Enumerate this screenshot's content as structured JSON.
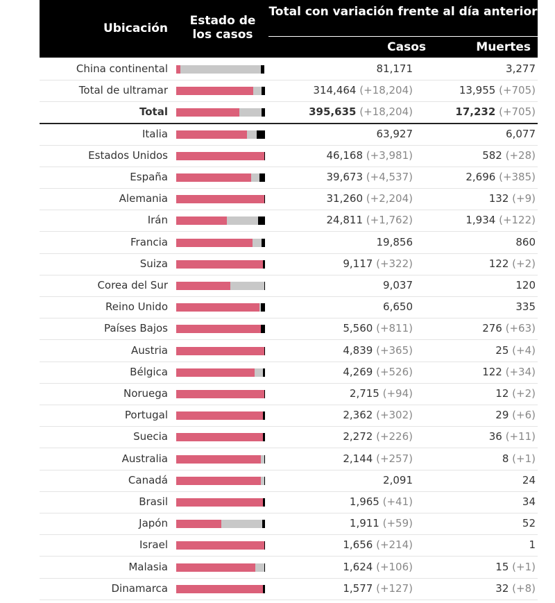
{
  "header": {
    "location": "Ubicación",
    "status": "Estado de los casos",
    "total": "Total con variación frente al día anterior",
    "cases": "Casos",
    "deaths": "Muertes"
  },
  "colors": {
    "active": "#db6079",
    "recovered": "#c8c8c8",
    "deaths": "#000000"
  },
  "rows": [
    {
      "location": "China continental",
      "cases": "81,171",
      "cases_change": "",
      "deaths": "3,277",
      "deaths_change": "",
      "active_frac": 0.05,
      "recovered_frac": 0.91,
      "deaths_frac": 0.04
    },
    {
      "location": "Total de ultramar",
      "cases": "314,464",
      "cases_change": "(+18,204)",
      "deaths": "13,955",
      "deaths_change": "(+705)",
      "active_frac": 0.87,
      "recovered_frac": 0.09,
      "deaths_frac": 0.04
    },
    {
      "location": "Total",
      "cases": "395,635",
      "cases_change": "(+18,204)",
      "deaths": "17,232",
      "deaths_change": "(+705)",
      "active_frac": 0.71,
      "recovered_frac": 0.25,
      "deaths_frac": 0.04,
      "total": true
    },
    {
      "location": "Italia",
      "cases": "63,927",
      "cases_change": "",
      "deaths": "6,077",
      "deaths_change": "",
      "active_frac": 0.8,
      "recovered_frac": 0.11,
      "deaths_frac": 0.09
    },
    {
      "location": "Estados Unidos",
      "cases": "46,168",
      "cases_change": "(+3,981)",
      "deaths": "582",
      "deaths_change": "(+28)",
      "active_frac": 0.99,
      "recovered_frac": 0.0,
      "deaths_frac": 0.01
    },
    {
      "location": "España",
      "cases": "39,673",
      "cases_change": "(+4,537)",
      "deaths": "2,696",
      "deaths_change": "(+385)",
      "active_frac": 0.84,
      "recovered_frac": 0.09,
      "deaths_frac": 0.07
    },
    {
      "location": "Alemania",
      "cases": "31,260",
      "cases_change": "(+2,204)",
      "deaths": "132",
      "deaths_change": "(+9)",
      "active_frac": 0.99,
      "recovered_frac": 0.0,
      "deaths_frac": 0.01
    },
    {
      "location": "Irán",
      "cases": "24,811",
      "cases_change": "(+1,762)",
      "deaths": "1,934",
      "deaths_change": "(+122)",
      "active_frac": 0.57,
      "recovered_frac": 0.35,
      "deaths_frac": 0.08
    },
    {
      "location": "Francia",
      "cases": "19,856",
      "cases_change": "",
      "deaths": "860",
      "deaths_change": "",
      "active_frac": 0.86,
      "recovered_frac": 0.1,
      "deaths_frac": 0.04
    },
    {
      "location": "Suiza",
      "cases": "9,117",
      "cases_change": "(+322)",
      "deaths": "122",
      "deaths_change": "(+2)",
      "active_frac": 0.98,
      "recovered_frac": 0.0,
      "deaths_frac": 0.02
    },
    {
      "location": "Corea del Sur",
      "cases": "9,037",
      "cases_change": "",
      "deaths": "120",
      "deaths_change": "",
      "active_frac": 0.61,
      "recovered_frac": 0.38,
      "deaths_frac": 0.01
    },
    {
      "location": "Reino Unido",
      "cases": "6,650",
      "cases_change": "",
      "deaths": "335",
      "deaths_change": "",
      "active_frac": 0.94,
      "recovered_frac": 0.01,
      "deaths_frac": 0.05
    },
    {
      "location": "Países Bajos",
      "cases": "5,560",
      "cases_change": "(+811)",
      "deaths": "276",
      "deaths_change": "(+63)",
      "active_frac": 0.95,
      "recovered_frac": 0.0,
      "deaths_frac": 0.05
    },
    {
      "location": "Austria",
      "cases": "4,839",
      "cases_change": "(+365)",
      "deaths": "25",
      "deaths_change": "(+4)",
      "active_frac": 0.99,
      "recovered_frac": 0.0,
      "deaths_frac": 0.01
    },
    {
      "location": "Bélgica",
      "cases": "4,269",
      "cases_change": "(+526)",
      "deaths": "122",
      "deaths_change": "(+34)",
      "active_frac": 0.88,
      "recovered_frac": 0.09,
      "deaths_frac": 0.03
    },
    {
      "location": "Noruega",
      "cases": "2,715",
      "cases_change": "(+94)",
      "deaths": "12",
      "deaths_change": "(+2)",
      "active_frac": 0.99,
      "recovered_frac": 0.0,
      "deaths_frac": 0.01
    },
    {
      "location": "Portugal",
      "cases": "2,362",
      "cases_change": "(+302)",
      "deaths": "29",
      "deaths_change": "(+6)",
      "active_frac": 0.98,
      "recovered_frac": 0.0,
      "deaths_frac": 0.02
    },
    {
      "location": "Suecia",
      "cases": "2,272",
      "cases_change": "(+226)",
      "deaths": "36",
      "deaths_change": "(+11)",
      "active_frac": 0.98,
      "recovered_frac": 0.0,
      "deaths_frac": 0.02
    },
    {
      "location": "Australia",
      "cases": "2,144",
      "cases_change": "(+257)",
      "deaths": "8",
      "deaths_change": "(+1)",
      "active_frac": 0.95,
      "recovered_frac": 0.04,
      "deaths_frac": 0.01
    },
    {
      "location": "Canadá",
      "cases": "2,091",
      "cases_change": "",
      "deaths": "24",
      "deaths_change": "",
      "active_frac": 0.95,
      "recovered_frac": 0.04,
      "deaths_frac": 0.01
    },
    {
      "location": "Brasil",
      "cases": "1,965",
      "cases_change": "(+41)",
      "deaths": "34",
      "deaths_change": "",
      "active_frac": 0.98,
      "recovered_frac": 0.0,
      "deaths_frac": 0.02
    },
    {
      "location": "Japón",
      "cases": "1,911",
      "cases_change": "(+59)",
      "deaths": "52",
      "deaths_change": "",
      "active_frac": 0.51,
      "recovered_frac": 0.46,
      "deaths_frac": 0.03
    },
    {
      "location": "Israel",
      "cases": "1,656",
      "cases_change": "(+214)",
      "deaths": "1",
      "deaths_change": "",
      "active_frac": 0.99,
      "recovered_frac": 0.0,
      "deaths_frac": 0.01
    },
    {
      "location": "Malasia",
      "cases": "1,624",
      "cases_change": "(+106)",
      "deaths": "15",
      "deaths_change": "(+1)",
      "active_frac": 0.89,
      "recovered_frac": 0.1,
      "deaths_frac": 0.01
    },
    {
      "location": "Dinamarca",
      "cases": "1,577",
      "cases_change": "(+127)",
      "deaths": "32",
      "deaths_change": "(+8)",
      "active_frac": 0.98,
      "recovered_frac": 0.0,
      "deaths_frac": 0.02
    }
  ]
}
